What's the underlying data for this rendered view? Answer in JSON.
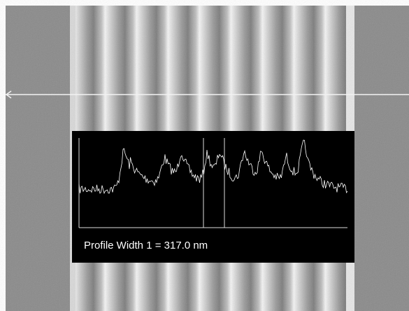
{
  "overlay": {
    "label": "Profile Width 1 = 317.0 nm"
  }
}
